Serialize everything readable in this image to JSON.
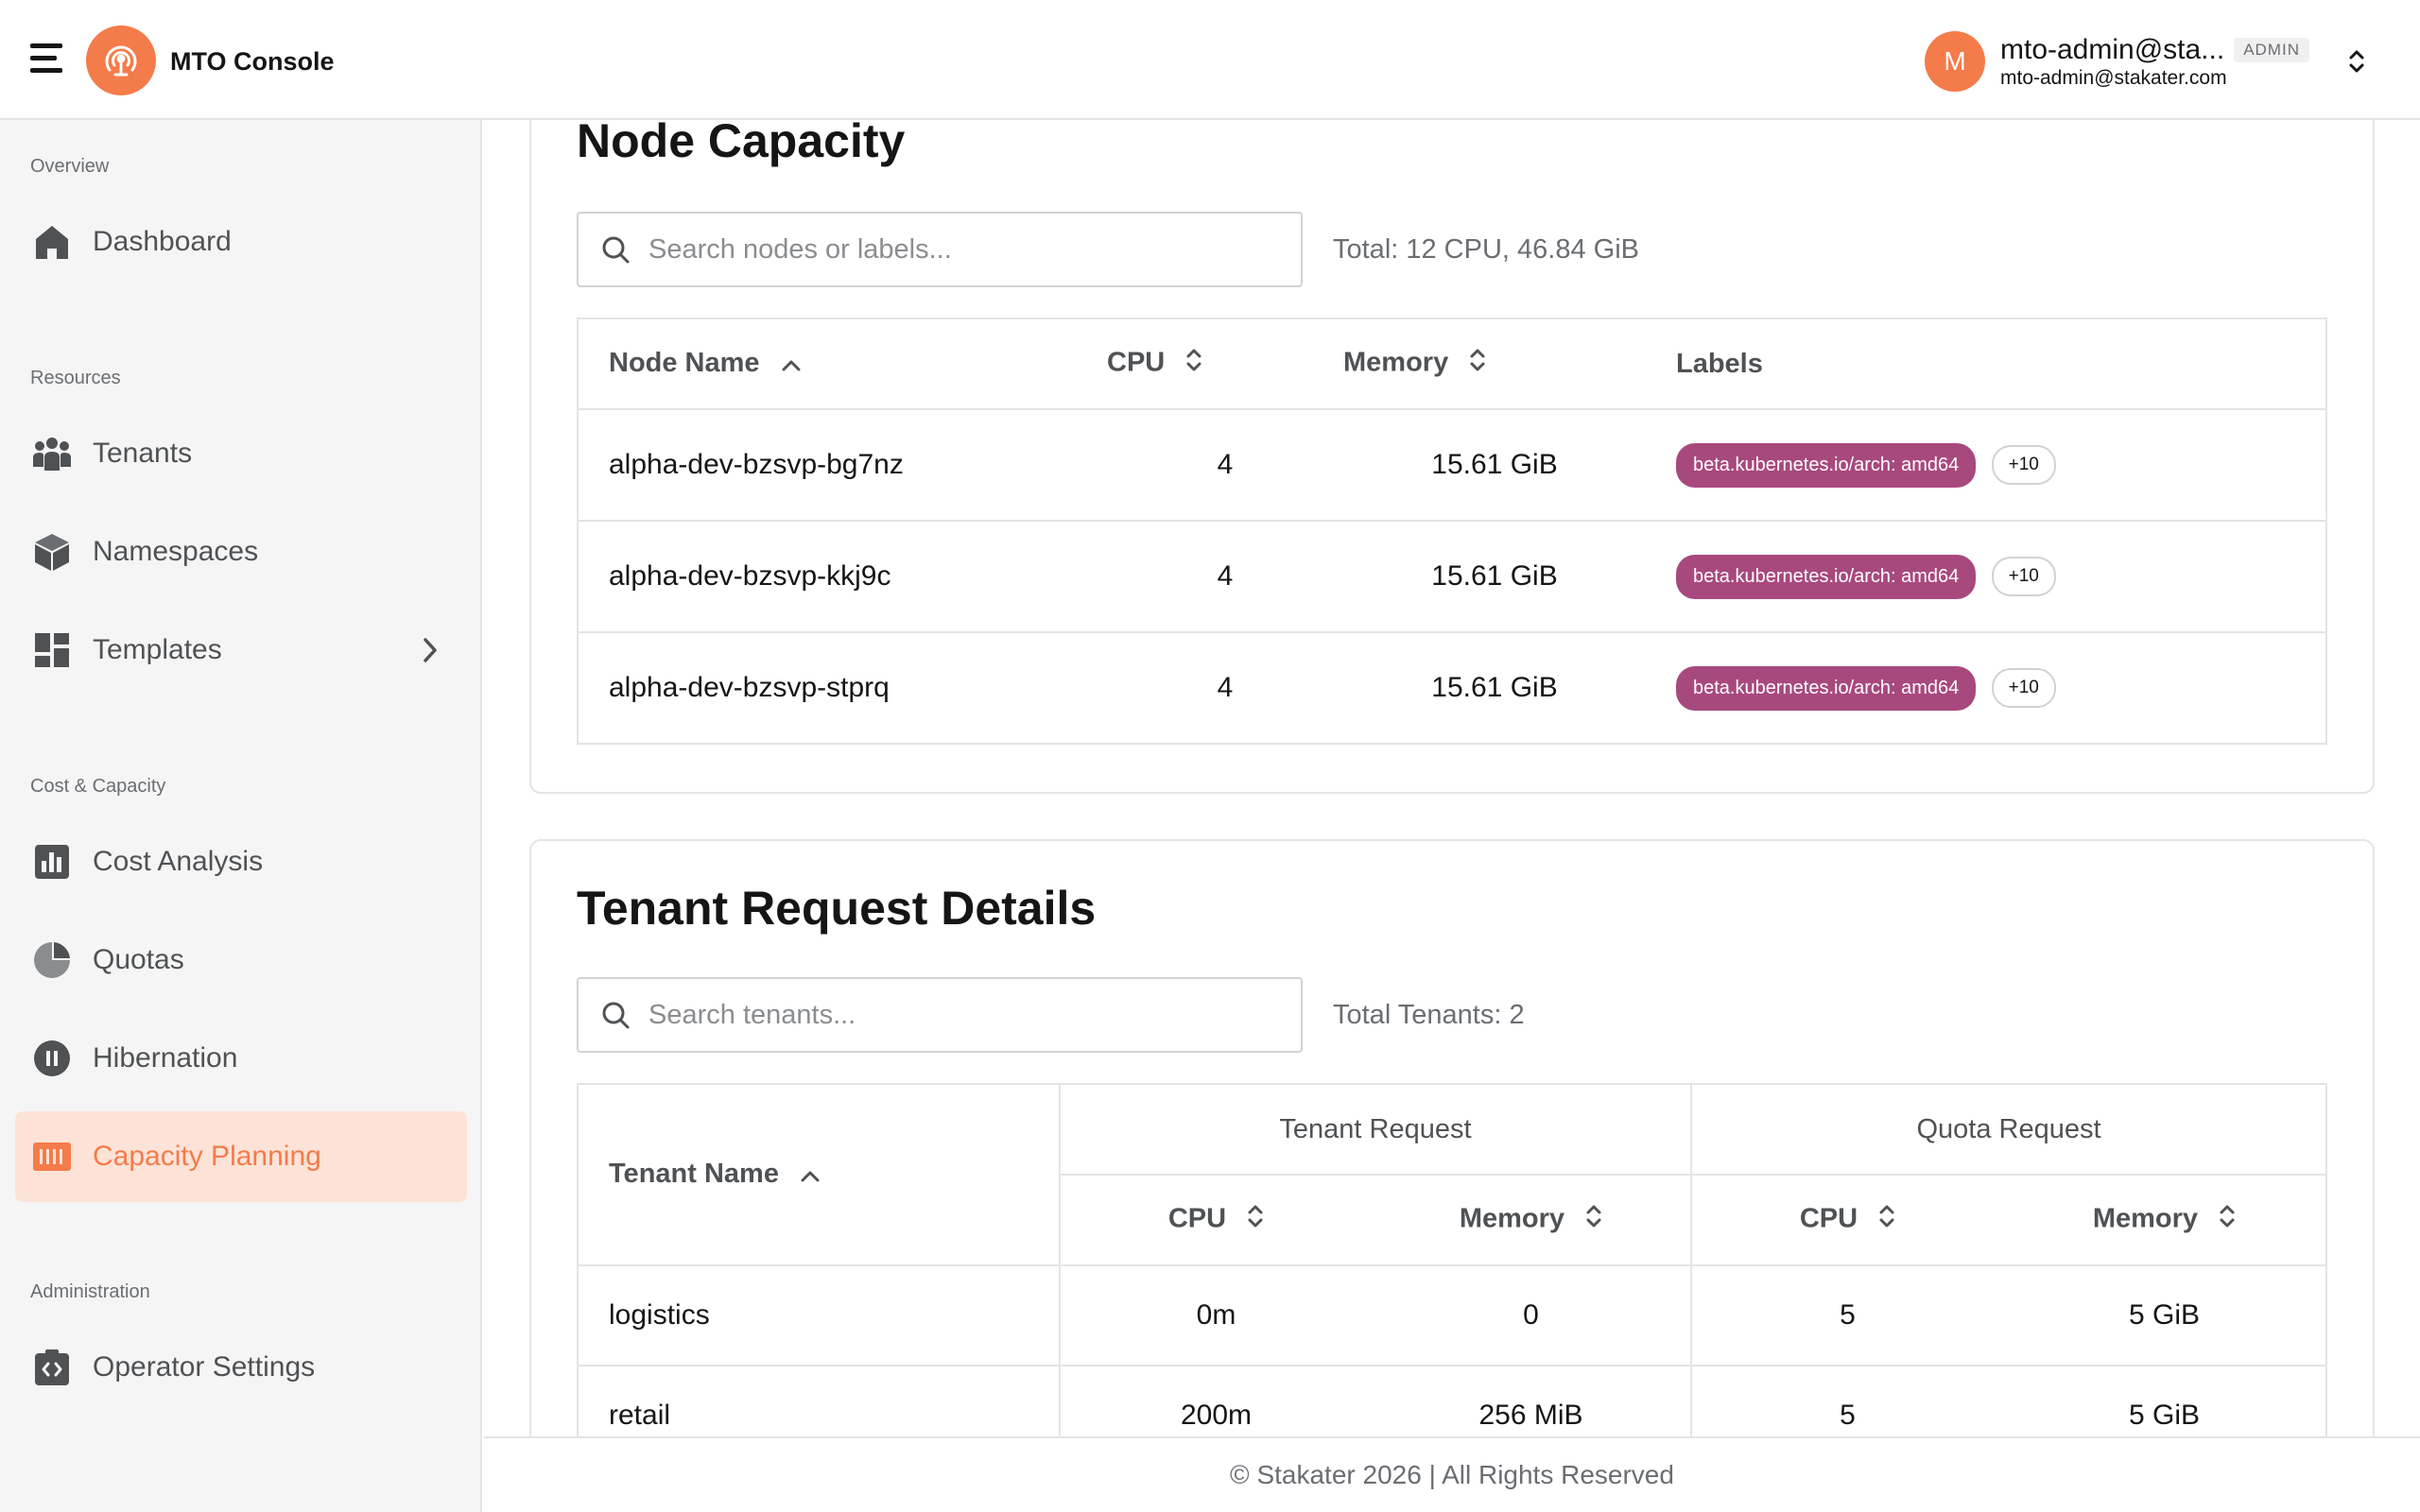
{
  "header": {
    "brand": "MTO Console",
    "user": {
      "initial": "M",
      "name": "mto-admin@sta...",
      "role_badge": "ADMIN",
      "email": "mto-admin@stakater.com"
    }
  },
  "sidebar": {
    "sections": {
      "overview": "Overview",
      "resources": "Resources",
      "cost_capacity": "Cost & Capacity",
      "administration": "Administration"
    },
    "items": {
      "dashboard": "Dashboard",
      "tenants": "Tenants",
      "namespaces": "Namespaces",
      "templates": "Templates",
      "cost_analysis": "Cost Analysis",
      "quotas": "Quotas",
      "hibernation": "Hibernation",
      "capacity_planning": "Capacity Planning",
      "operator_settings": "Operator Settings"
    },
    "active_item": "capacity_planning"
  },
  "node_capacity": {
    "title": "Node Capacity",
    "search_placeholder": "Search nodes or labels...",
    "total": "Total: 12 CPU, 46.84 GiB",
    "columns": {
      "name": "Node Name",
      "cpu": "CPU",
      "memory": "Memory",
      "labels": "Labels"
    },
    "rows": [
      {
        "name": "alpha-dev-bzsvp-bg7nz",
        "cpu": "4",
        "memory": "15.61 GiB",
        "label": "beta.kubernetes.io/arch: amd64",
        "more": "+10"
      },
      {
        "name": "alpha-dev-bzsvp-kkj9c",
        "cpu": "4",
        "memory": "15.61 GiB",
        "label": "beta.kubernetes.io/arch: amd64",
        "more": "+10"
      },
      {
        "name": "alpha-dev-bzsvp-stprq",
        "cpu": "4",
        "memory": "15.61 GiB",
        "label": "beta.kubernetes.io/arch: amd64",
        "more": "+10"
      }
    ]
  },
  "tenant_requests": {
    "title": "Tenant Request Details",
    "search_placeholder": "Search tenants...",
    "total": "Total Tenants: 2",
    "columns": {
      "name": "Tenant Name",
      "tenant_request": "Tenant Request",
      "quota_request": "Quota Request",
      "cpu": "CPU",
      "memory": "Memory"
    },
    "rows": [
      {
        "name": "logistics",
        "req_cpu": "0m",
        "req_mem": "0",
        "quota_cpu": "5",
        "quota_mem": "5 GiB"
      },
      {
        "name": "retail",
        "req_cpu": "200m",
        "req_mem": "256 MiB",
        "quota_cpu": "5",
        "quota_mem": "5 GiB"
      }
    ]
  },
  "footer": {
    "text": "© Stakater 2026 | All Rights Reserved"
  },
  "colors": {
    "accent": "#f47b4a",
    "active_bg": "#fde3d7",
    "label_chip": "#a8497e",
    "sidebar_bg": "#f5f5f5"
  }
}
